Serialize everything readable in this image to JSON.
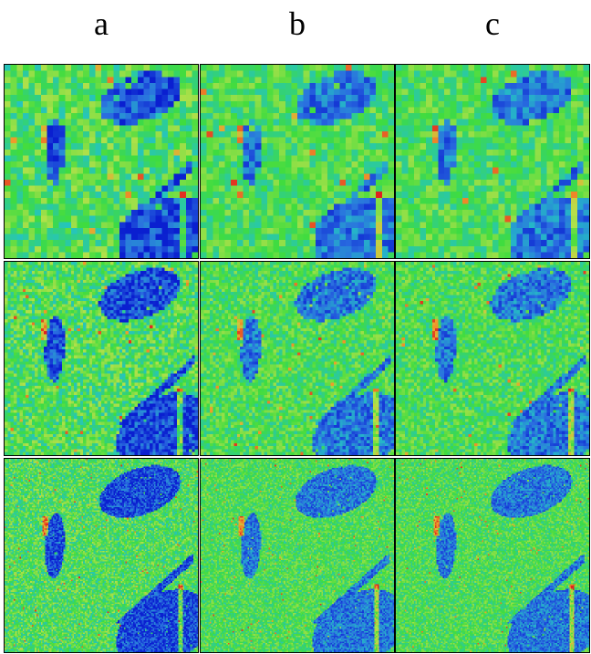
{
  "columns": [
    {
      "label": "a"
    },
    {
      "label": "b"
    },
    {
      "label": "c"
    }
  ],
  "rows": [
    {
      "resolution": 32
    },
    {
      "resolution": 64
    },
    {
      "resolution": 128
    }
  ],
  "colormap": [
    "#0a1fd0",
    "#2a6ee0",
    "#24c3c3",
    "#3fdc3f",
    "#b6e04a",
    "#f09a2a",
    "#e02020"
  ],
  "features": [
    "ellipse-top-right",
    "ellipse-left",
    "diagonal-streak",
    "region-bottom-right",
    "vertical-edge-right"
  ]
}
